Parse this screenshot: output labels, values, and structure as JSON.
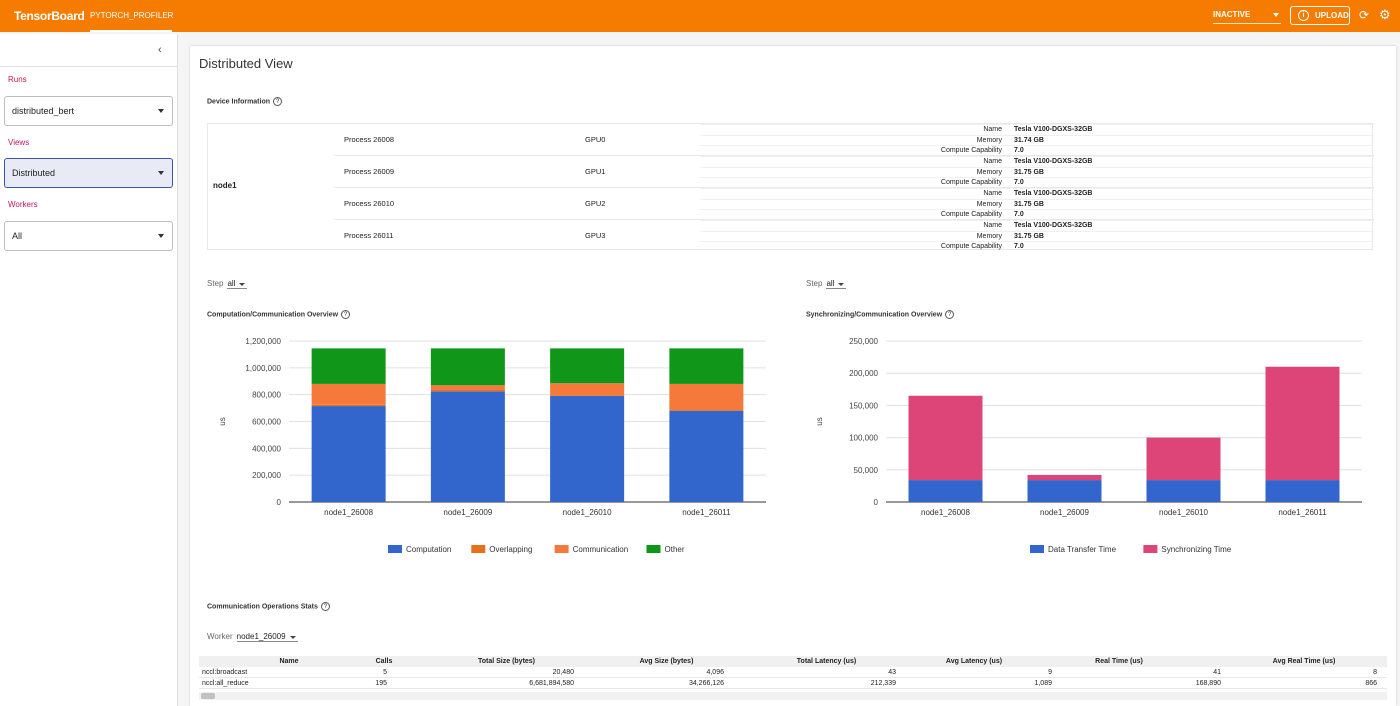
{
  "app": {
    "brand": "TensorBoard",
    "active_tab": "PYTORCH_PROFILER",
    "status": "INACTIVE",
    "upload_label": "UPLOAD"
  },
  "sidebar": {
    "runs_label": "Runs",
    "runs_value": "distributed_bert",
    "views_label": "Views",
    "views_value": "Distributed",
    "workers_label": "Workers",
    "workers_value": "All"
  },
  "main": {
    "title": "Distributed View",
    "device_info_title": "Device Information",
    "node": "node1",
    "devices": [
      {
        "process": "Process 26008",
        "gpu": "GPU0",
        "name": "Tesla V100-DGXS-32GB",
        "memory": "31.74 GB",
        "compute": "7.0"
      },
      {
        "process": "Process 26009",
        "gpu": "GPU1",
        "name": "Tesla V100-DGXS-32GB",
        "memory": "31.75 GB",
        "compute": "7.0"
      },
      {
        "process": "Process 26010",
        "gpu": "GPU2",
        "name": "Tesla V100-DGXS-32GB",
        "memory": "31.75 GB",
        "compute": "7.0"
      },
      {
        "process": "Process 26011",
        "gpu": "GPU3",
        "name": "Tesla V100-DGXS-32GB",
        "memory": "31.75 GB",
        "compute": "7.0"
      }
    ],
    "kv_labels": {
      "name": "Name",
      "memory": "Memory",
      "compute": "Compute Capability"
    },
    "step_label": "Step",
    "step_value": "all",
    "comp_title": "Computation/Communication Overview",
    "sync_title": "Synchronizing/Communication Overview",
    "stats_title": "Communication Operations Stats",
    "worker_label": "Worker",
    "worker_value": "node1_26009",
    "stats_headers": [
      "Name",
      "Calls",
      "Total Size (bytes)",
      "Avg Size (bytes)",
      "Total Latency (us)",
      "Avg Latency (us)",
      "Real Time (us)",
      "Avg Real Time (us)"
    ],
    "stats_rows": [
      [
        "nccl:broadcast",
        "5",
        "20,480",
        "4,096",
        "43",
        "9",
        "41",
        "8"
      ],
      [
        "nccl:all_reduce",
        "195",
        "6,681,894,580",
        "34,266,126",
        "212,339",
        "1,089",
        "168,890",
        "866"
      ]
    ]
  },
  "chart_data": [
    {
      "type": "bar",
      "stacked": true,
      "title": "",
      "ylabel": "us",
      "ylim": [
        0,
        1200000
      ],
      "yticks": [
        0,
        200000,
        400000,
        600000,
        800000,
        1000000,
        1200000
      ],
      "ytick_labels": [
        "0",
        "200,000",
        "400,000",
        "600,000",
        "800,000",
        "1,000,000",
        "1,200,000"
      ],
      "categories": [
        "node1_26008",
        "node1_26009",
        "node1_26010",
        "node1_26011"
      ],
      "legend_position": "bottom",
      "series": [
        {
          "name": "Computation",
          "color": "#3366cc",
          "values": [
            715000,
            825000,
            790000,
            680000
          ]
        },
        {
          "name": "Overlapping",
          "color": "#e8701a",
          "values": [
            10000,
            10000,
            5000,
            10000
          ]
        },
        {
          "name": "Communication",
          "color": "#f5793a",
          "values": [
            155000,
            35000,
            90000,
            190000
          ]
        },
        {
          "name": "Other",
          "color": "#109618",
          "values": [
            265000,
            275000,
            260000,
            265000
          ]
        }
      ]
    },
    {
      "type": "bar",
      "stacked": true,
      "title": "",
      "ylabel": "us",
      "ylim": [
        0,
        250000
      ],
      "yticks": [
        0,
        50000,
        100000,
        150000,
        200000,
        250000
      ],
      "ytick_labels": [
        "0",
        "50,000",
        "100,000",
        "150,000",
        "200,000",
        "250,000"
      ],
      "categories": [
        "node1_26008",
        "node1_26009",
        "node1_26010",
        "node1_26011"
      ],
      "legend_position": "bottom",
      "series": [
        {
          "name": "Data Transfer Time",
          "color": "#3366cc",
          "values": [
            34000,
            34000,
            34000,
            34000
          ]
        },
        {
          "name": "Synchronizing Time",
          "color": "#dd4477",
          "values": [
            131000,
            8000,
            66000,
            176000
          ]
        }
      ]
    }
  ]
}
